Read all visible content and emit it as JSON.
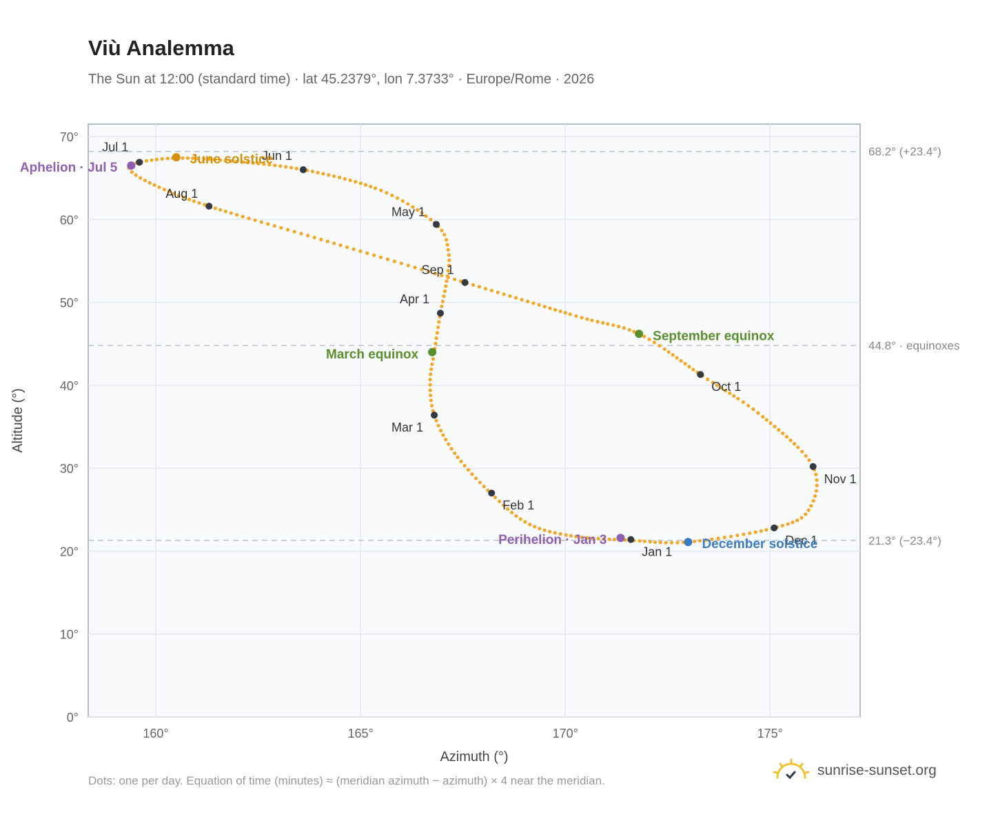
{
  "header": {
    "title": "Viù Analemma",
    "subtitle": "The Sun at 12:00 (standard time) · lat 45.2379°, lon 7.3733° · Europe/Rome · 2026"
  },
  "footer": {
    "note": "Dots: one per day. Equation of time (minutes) ≈ (meridian azimuth − azimuth) × 4 near the meridian.",
    "brand": "sunrise-sunset.org",
    "brand_icon": "sun-logo-icon"
  },
  "colors": {
    "curve": "#f5a623",
    "month_dot": "#333a44",
    "equinox": "#5b8f2e",
    "june_solstice": "#d4900a",
    "december_solstice": "#3b7cc4",
    "perihelion_aphelion": "#8e5fb0",
    "plot_bg": "#f8fafc",
    "grid": "#e3e8ee",
    "reference_line": "#b8c2cc",
    "axis_text": "#666"
  },
  "chart_data": {
    "type": "scatter",
    "xlabel": "Azimuth (°)",
    "ylabel": "Altitude (°)",
    "xlim": [
      158.35,
      177.2
    ],
    "ylim": [
      0,
      71.5
    ],
    "xticks": [
      160,
      165,
      170,
      175
    ],
    "yticks": [
      0,
      10,
      20,
      30,
      40,
      50,
      60,
      70
    ],
    "x_tick_labels": [
      "160°",
      "165°",
      "170°",
      "175°"
    ],
    "y_tick_labels": [
      "0°",
      "10°",
      "20°",
      "30°",
      "40°",
      "50°",
      "60°",
      "70°"
    ],
    "grid": true,
    "reference_lines": [
      {
        "y": 68.2,
        "label": "68.2° (+23.4°)"
      },
      {
        "y": 44.8,
        "label": "44.8° · equinoxes"
      },
      {
        "y": 21.3,
        "label": "21.3° (−23.4°)"
      }
    ],
    "curve_anchors": [
      [
        171.6,
        21.3
      ],
      [
        170.2,
        21.8
      ],
      [
        169.1,
        23.3
      ],
      [
        168.2,
        26.9
      ],
      [
        167.3,
        31.8
      ],
      [
        166.8,
        36.4
      ],
      [
        166.7,
        40.5
      ],
      [
        166.8,
        44.0
      ],
      [
        166.95,
        48.7
      ],
      [
        167.1,
        52.5
      ],
      [
        167.15,
        56.0
      ],
      [
        166.85,
        59.4
      ],
      [
        165.5,
        63.5
      ],
      [
        163.6,
        66.0
      ],
      [
        161.7,
        67.1
      ],
      [
        160.5,
        67.4
      ],
      [
        159.6,
        66.9
      ],
      [
        159.35,
        66.1
      ],
      [
        159.9,
        64.3
      ],
      [
        161.3,
        61.6
      ],
      [
        164.3,
        57.2
      ],
      [
        167.55,
        52.4
      ],
      [
        170.3,
        48.3
      ],
      [
        171.8,
        46.2
      ],
      [
        173.3,
        41.3
      ],
      [
        174.8,
        36.3
      ],
      [
        176.05,
        30.2
      ],
      [
        175.95,
        25.0
      ],
      [
        175.1,
        22.8
      ],
      [
        173.0,
        21.1
      ],
      [
        171.6,
        21.3
      ]
    ],
    "month_markers": [
      {
        "label": "Jan 1",
        "x": 171.6,
        "y": 21.4
      },
      {
        "label": "Feb 1",
        "x": 168.2,
        "y": 27.0
      },
      {
        "label": "Mar 1",
        "x": 166.8,
        "y": 36.4
      },
      {
        "label": "Apr 1",
        "x": 166.95,
        "y": 48.7
      },
      {
        "label": "May 1",
        "x": 166.85,
        "y": 59.4
      },
      {
        "label": "Jun 1",
        "x": 163.6,
        "y": 66.0
      },
      {
        "label": "Jul 1",
        "x": 159.6,
        "y": 66.9
      },
      {
        "label": "Aug 1",
        "x": 161.3,
        "y": 61.6
      },
      {
        "label": "Sep 1",
        "x": 167.55,
        "y": 52.4
      },
      {
        "label": "Oct 1",
        "x": 173.3,
        "y": 41.3
      },
      {
        "label": "Nov 1",
        "x": 176.05,
        "y": 30.2
      },
      {
        "label": "Dec 1",
        "x": 175.1,
        "y": 22.8
      }
    ],
    "events": [
      {
        "label": "June solstice",
        "x": 160.5,
        "y": 67.5,
        "color": "#d4900a"
      },
      {
        "label": "December solstice",
        "x": 173.0,
        "y": 21.1,
        "color": "#3b7cc4"
      },
      {
        "label": "March equinox",
        "x": 166.75,
        "y": 44.0,
        "color": "#5b8f2e"
      },
      {
        "label": "September equinox",
        "x": 171.8,
        "y": 46.2,
        "color": "#5b8f2e"
      },
      {
        "label": "Aphelion · Jul 5",
        "x": 159.4,
        "y": 66.5,
        "color": "#8e5fb0"
      },
      {
        "label": "Perihelion · Jan 3",
        "x": 171.35,
        "y": 21.6,
        "color": "#8e5fb0"
      }
    ]
  }
}
